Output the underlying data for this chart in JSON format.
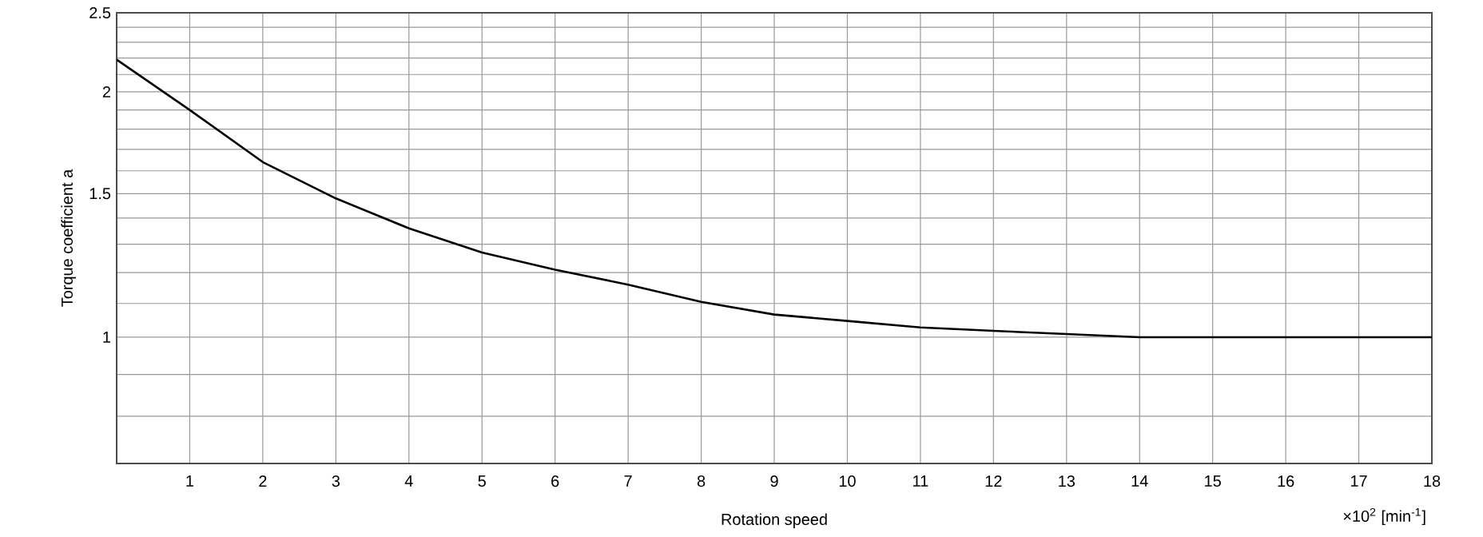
{
  "chart_data": {
    "type": "line",
    "xlabel": "Rotation speed",
    "ylabel": "Torque coefficient a",
    "annotations": [
      "×10$^{2}$ [min$^{-1}$]"
    ],
    "x": [
      0,
      1,
      2,
      3,
      4,
      5,
      6,
      7,
      8,
      9,
      10,
      11,
      12,
      13,
      14,
      15,
      16,
      17,
      18
    ],
    "series": [
      {
        "color": "#000000",
        "values": [
          2.19,
          1.9,
          1.64,
          1.48,
          1.36,
          1.27,
          1.21,
          1.16,
          1.105,
          1.066,
          1.047,
          1.028,
          1.018,
          1.009,
          1.0,
          1.0,
          1.0,
          1.0,
          1.0
        ]
      }
    ],
    "log": "y",
    "xlim": [
      0,
      18
    ],
    "ylim": [
      0.7,
      2.5
    ],
    "xticks": [
      {
        "value": 0,
        "label": null
      },
      1,
      2,
      3,
      4,
      5,
      6,
      7,
      8,
      9,
      10,
      11,
      12,
      13,
      14,
      15,
      16,
      17,
      18
    ],
    "yticks": [
      {
        "value": 0.7,
        "label": null
      },
      {
        "value": 0.8,
        "label": null
      },
      {
        "value": 0.9,
        "label": null
      },
      1,
      {
        "value": 1.1,
        "label": null
      },
      {
        "value": 1.2,
        "label": null
      },
      {
        "value": 1.3,
        "label": null
      },
      {
        "value": 1.4,
        "label": null
      },
      1.5,
      {
        "value": 1.6,
        "label": null
      },
      {
        "value": 1.7,
        "label": null
      },
      {
        "value": 1.8,
        "label": null
      },
      {
        "value": 1.9,
        "label": null
      },
      2,
      {
        "value": 2.1,
        "label": null
      },
      {
        "value": 2.2,
        "label": null
      },
      {
        "value": 2.3,
        "label": null
      },
      {
        "value": 2.4,
        "label": null
      },
      2.5
    ],
    "grid": true,
    "marker": "none",
    "line_style": "solid"
  }
}
